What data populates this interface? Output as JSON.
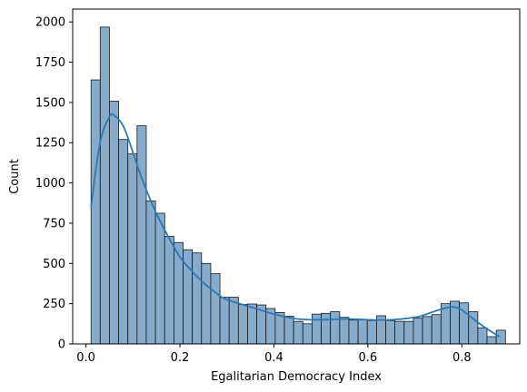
{
  "chart_data": {
    "type": "bar",
    "subtype": "histogram-with-kde",
    "xlabel": "Egalitarian Democracy Index",
    "ylabel": "Count",
    "xlim": [
      -0.0282,
      0.9232
    ],
    "ylim": [
      0,
      2080
    ],
    "x_ticks": [
      0.0,
      0.2,
      0.4,
      0.6,
      0.8
    ],
    "x_tick_labels": [
      "0.0",
      "0.2",
      "0.4",
      "0.6",
      "0.8"
    ],
    "y_ticks": [
      0,
      250,
      500,
      750,
      1000,
      1250,
      1500,
      1750,
      2000
    ],
    "y_tick_labels": [
      "0",
      "250",
      "500",
      "750",
      "1000",
      "1250",
      "1500",
      "1750",
      "2000"
    ],
    "bin_start": 0.0108,
    "bin_width": 0.0196,
    "values": [
      1640,
      1968,
      1508,
      1270,
      1180,
      1355,
      888,
      812,
      668,
      630,
      585,
      565,
      500,
      436,
      290,
      290,
      245,
      248,
      242,
      220,
      195,
      172,
      140,
      125,
      185,
      190,
      200,
      165,
      148,
      150,
      145,
      175,
      145,
      140,
      140,
      160,
      170,
      182,
      250,
      265,
      255,
      200,
      100,
      45,
      85
    ],
    "kde": {
      "x": [
        0.0108,
        0.03,
        0.05,
        0.06,
        0.08,
        0.1,
        0.12,
        0.15,
        0.18,
        0.2,
        0.22,
        0.25,
        0.28,
        0.3,
        0.35,
        0.4,
        0.45,
        0.5,
        0.55,
        0.6,
        0.65,
        0.7,
        0.72,
        0.75,
        0.78,
        0.8,
        0.82,
        0.85,
        0.88
      ],
      "y": [
        850,
        1250,
        1410,
        1420,
        1350,
        1190,
        1020,
        810,
        640,
        540,
        470,
        380,
        310,
        275,
        230,
        185,
        155,
        150,
        155,
        150,
        150,
        165,
        180,
        210,
        230,
        210,
        165,
        100,
        45
      ]
    },
    "colors": {
      "bar_fill": "#86abcb",
      "bar_edge": "#1a1a1a",
      "kde_line": "#2a78b4"
    },
    "grid": false,
    "legend": "none"
  }
}
